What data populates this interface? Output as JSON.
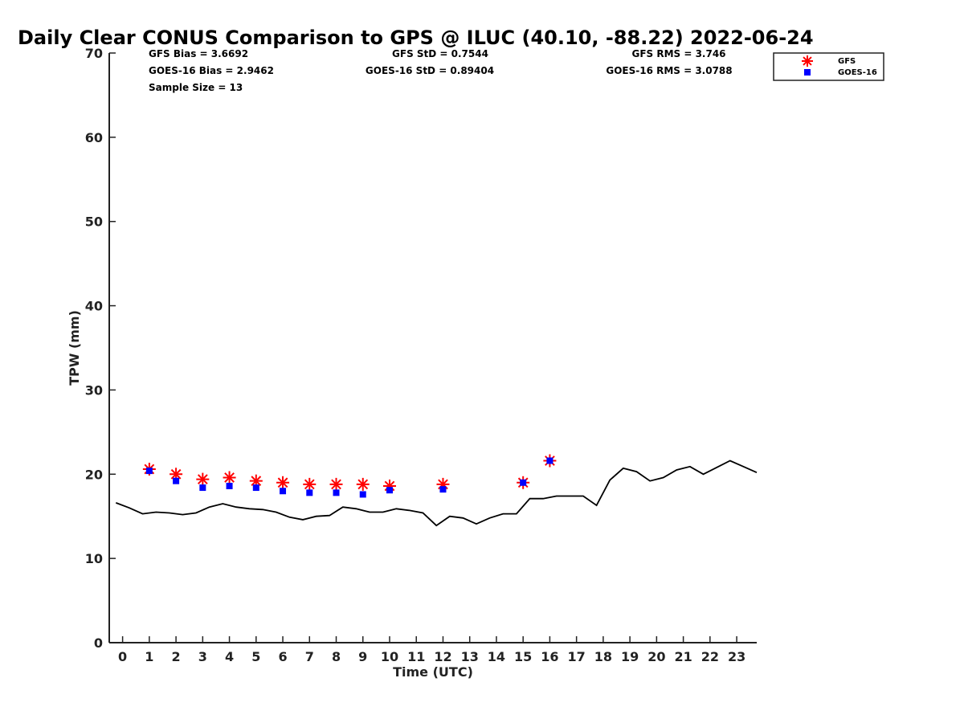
{
  "chart_data": {
    "type": "scatter",
    "title": "Daily Clear CONUS Comparison to GPS @ ILUC (40.10, -88.22) 2022-06-24",
    "xlabel": "Time (UTC)",
    "ylabel": "TPW (mm)",
    "xlim": [
      -0.5,
      23.75
    ],
    "ylim": [
      0,
      70
    ],
    "x_ticks": [
      "0",
      "1",
      "2",
      "3",
      "4",
      "5",
      "6",
      "7",
      "8",
      "9",
      "10",
      "11",
      "12",
      "13",
      "14",
      "15",
      "16",
      "17",
      "18",
      "19",
      "20",
      "21",
      "22",
      "23"
    ],
    "y_ticks": [
      "0",
      "10",
      "20",
      "30",
      "40",
      "50",
      "60",
      "70"
    ],
    "grid": false,
    "legend_position": "top-right",
    "stats": [
      "GFS Bias = 3.6692",
      "GOES-16 Bias = 2.9462",
      "Sample Size = 13",
      "GFS StD = 0.7544",
      "GOES-16 StD = 0.89404",
      "GFS RMS = 3.746",
      "GOES-16 RMS = 3.0788"
    ],
    "series": [
      {
        "name": "GFS",
        "marker": "asterisk",
        "color": "#ff0000",
        "x": [
          1,
          2,
          3,
          4,
          5,
          6,
          7,
          8,
          9,
          10,
          12,
          15,
          16
        ],
        "y": [
          20.6,
          20.0,
          19.4,
          19.6,
          19.2,
          19.0,
          18.8,
          18.8,
          18.8,
          18.6,
          18.8,
          19.0,
          21.6
        ]
      },
      {
        "name": "GOES-16",
        "marker": "square",
        "color": "#0000ff",
        "x": [
          1,
          2,
          3,
          4,
          5,
          6,
          7,
          8,
          9,
          10,
          12,
          15,
          16
        ],
        "y": [
          20.4,
          19.2,
          18.4,
          18.6,
          18.4,
          18.0,
          17.8,
          17.8,
          17.6,
          18.1,
          18.2,
          19.0,
          21.6
        ]
      },
      {
        "name": "",
        "marker": "line",
        "color": "#000000",
        "x": [
          -0.25,
          0.25,
          0.75,
          1.25,
          1.75,
          2.25,
          2.75,
          3.25,
          3.75,
          4.25,
          4.75,
          5.25,
          5.75,
          6.25,
          6.75,
          7.25,
          7.75,
          8.25,
          8.75,
          9.25,
          9.75,
          10.25,
          10.75,
          11.25,
          11.75,
          12.25,
          12.75,
          13.25,
          13.75,
          14.25,
          14.75,
          15.25,
          15.75,
          16.25,
          16.75,
          17.25,
          17.75,
          18.25,
          18.75,
          19.25,
          19.75,
          20.25,
          20.75,
          21.25,
          21.75,
          22.25,
          22.75,
          23.25,
          23.75
        ],
        "y": [
          16.6,
          16.0,
          15.3,
          15.5,
          15.4,
          15.2,
          15.4,
          16.1,
          16.5,
          16.1,
          15.9,
          15.8,
          15.5,
          14.9,
          14.6,
          15.0,
          15.1,
          16.1,
          15.9,
          15.5,
          15.5,
          15.9,
          15.7,
          15.4,
          13.9,
          15.0,
          14.8,
          14.1,
          14.8,
          15.3,
          15.3,
          17.1,
          17.1,
          17.4,
          17.4,
          17.4,
          16.3,
          19.3,
          20.7,
          20.3,
          19.2,
          19.6,
          20.5,
          20.9,
          20.0,
          20.8,
          21.6,
          20.9,
          20.2
        ]
      }
    ]
  }
}
